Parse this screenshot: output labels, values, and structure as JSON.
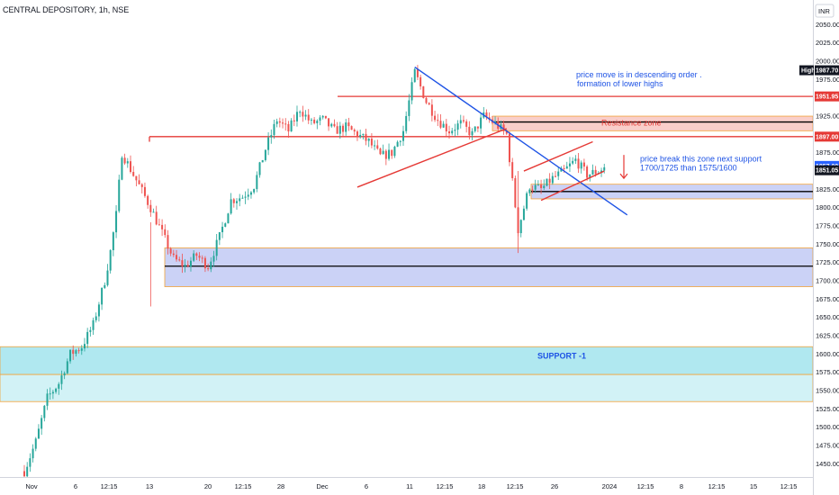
{
  "header": {
    "symbol_title": "CENTRAL DEPOSITORY, 1h, NSE",
    "currency_button": "INR"
  },
  "chart_data": {
    "type": "candlestick",
    "symbol": "CENTRAL DEPOSITORY",
    "interval": "1h",
    "exchange": "NSE",
    "currency": "INR",
    "ylim": [
      1432,
      2080
    ],
    "y_ticks": [
      1450,
      1475,
      1500,
      1525,
      1550,
      1575,
      1600,
      1625,
      1650,
      1675,
      1700,
      1725,
      1750,
      1775,
      1800,
      1825,
      1850,
      1875,
      1900,
      1925,
      1950,
      1975,
      2000,
      2025,
      2050
    ],
    "x_tick_labels": [
      "Nov",
      "6",
      "12:15",
      "13",
      "20",
      "12:15",
      "28",
      "Dec",
      "6",
      "11",
      "12:15",
      "18",
      "12:15",
      "26",
      "2024",
      "12:15",
      "8",
      "12:15",
      "15",
      "12:15"
    ],
    "price_path": [
      [
        0,
        1440
      ],
      [
        2,
        1480
      ],
      [
        4,
        1540
      ],
      [
        6,
        1560
      ],
      [
        8,
        1600
      ],
      [
        10,
        1610
      ],
      [
        12,
        1640
      ],
      [
        14,
        1700
      ],
      [
        15,
        1740
      ],
      [
        16,
        1790
      ],
      [
        17,
        1875
      ],
      [
        18,
        1860
      ],
      [
        20,
        1830
      ],
      [
        22,
        1800
      ],
      [
        24,
        1765
      ],
      [
        26,
        1730
      ],
      [
        28,
        1720
      ],
      [
        30,
        1735
      ],
      [
        32,
        1720
      ],
      [
        34,
        1760
      ],
      [
        36,
        1810
      ],
      [
        38,
        1815
      ],
      [
        40,
        1830
      ],
      [
        42,
        1880
      ],
      [
        44,
        1920
      ],
      [
        46,
        1905
      ],
      [
        48,
        1935
      ],
      [
        50,
        1915
      ],
      [
        52,
        1920
      ],
      [
        54,
        1905
      ],
      [
        56,
        1910
      ],
      [
        58,
        1900
      ],
      [
        60,
        1890
      ],
      [
        62,
        1870
      ],
      [
        64,
        1875
      ],
      [
        66,
        1905
      ],
      [
        68,
        1985
      ],
      [
        70,
        1945
      ],
      [
        72,
        1920
      ],
      [
        74,
        1905
      ],
      [
        76,
        1915
      ],
      [
        78,
        1900
      ],
      [
        80,
        1925
      ],
      [
        82,
        1915
      ],
      [
        84,
        1900
      ],
      [
        86,
        1770
      ],
      [
        88,
        1830
      ],
      [
        90,
        1825
      ],
      [
        92,
        1840
      ],
      [
        94,
        1850
      ],
      [
        96,
        1865
      ],
      [
        98,
        1845
      ],
      [
        100,
        1850
      ],
      [
        101,
        1855
      ]
    ],
    "horizontal_lines": [
      {
        "name": "resistance-1951",
        "value": 1951.95,
        "color": "#e53935"
      },
      {
        "name": "level-1897",
        "value": 1897.0,
        "color": "#e53935"
      },
      {
        "name": "resistance-zone-mid",
        "value": 1917,
        "color": "#000000"
      },
      {
        "name": "support-zone-mid",
        "value": 1822,
        "color": "#000000"
      },
      {
        "name": "demand-zone-mid",
        "value": 1720,
        "color": "#000000"
      }
    ],
    "zones": [
      {
        "name": "resistance-zone",
        "top": 1925,
        "bottom": 1905,
        "fill": "#f8c9c4",
        "label": "Resistance zone"
      },
      {
        "name": "breakdown-zone",
        "top": 1832,
        "bottom": 1812,
        "fill": "#c5cdf5"
      },
      {
        "name": "demand-zone",
        "top": 1745,
        "bottom": 1692,
        "fill": "#c5cdf5"
      },
      {
        "name": "support-1-zone",
        "top": 1610,
        "bottom": 1572,
        "fill": "#a7e6ee",
        "label": "SUPPORT -1"
      },
      {
        "name": "support-1-lower",
        "top": 1572,
        "bottom": 1535,
        "fill": "#cdf1f5"
      }
    ],
    "trendlines": [
      {
        "name": "descending-trendline",
        "color": "#1e53e5",
        "from": [
          68,
          1992
        ],
        "to": [
          105,
          1790
        ]
      },
      {
        "name": "rising-trendline",
        "color": "#e53935",
        "from": [
          58,
          1828
        ],
        "to": [
          84,
          1908
        ]
      },
      {
        "name": "wedge-upper",
        "color": "#e53935",
        "from": [
          87,
          1850
        ],
        "to": [
          99,
          1890
        ]
      },
      {
        "name": "wedge-lower",
        "color": "#e53935",
        "from": [
          90,
          1810
        ],
        "to": [
          101,
          1850
        ]
      }
    ],
    "price_badges": [
      {
        "label": "High",
        "value": "1987.70",
        "bg": "#131722"
      },
      {
        "label": "",
        "value": "1951.95",
        "bg": "#e53935"
      },
      {
        "label": "",
        "value": "1897.00",
        "bg": "#e53935"
      },
      {
        "label": "",
        "value": "1857.00",
        "bg": "#2962ff"
      },
      {
        "label": "",
        "value": "1851.05",
        "bg": "#131722"
      }
    ],
    "annotations": [
      {
        "name": "descending-note",
        "lines": [
          "price move is in descending order .",
          "formation of lower highs"
        ]
      },
      {
        "name": "breakdown-note",
        "lines": [
          "price break this zone next support",
          "1700/1725 than  1575/1600"
        ]
      }
    ],
    "colors": {
      "up": "#26a69a",
      "down": "#ef5350"
    }
  }
}
